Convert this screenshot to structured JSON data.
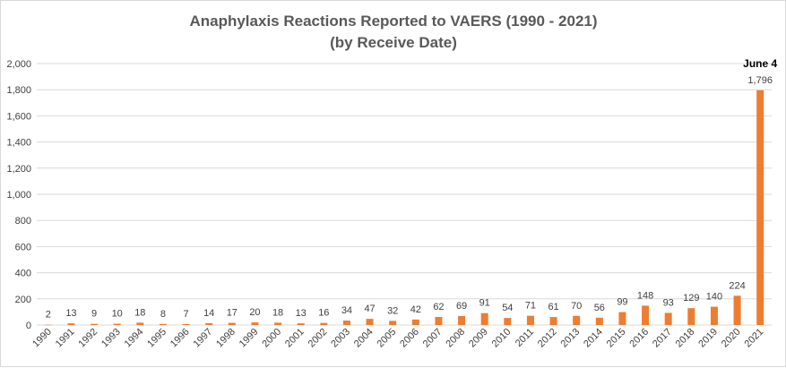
{
  "chart_data": {
    "type": "bar",
    "title": "Anaphylaxis Reactions Reported to VAERS (1990 - 2021)",
    "subtitle": "(by Receive Date)",
    "xlabel": "",
    "ylabel": "",
    "categories": [
      "1990",
      "1991",
      "1992",
      "1993",
      "1994",
      "1995",
      "1996",
      "1997",
      "1998",
      "1999",
      "2000",
      "2001",
      "2002",
      "2003",
      "2004",
      "2005",
      "2006",
      "2007",
      "2008",
      "2009",
      "2010",
      "2011",
      "2012",
      "2013",
      "2014",
      "2015",
      "2016",
      "2017",
      "2018",
      "2019",
      "2020",
      "2021"
    ],
    "values": [
      2,
      13,
      9,
      10,
      18,
      8,
      7,
      14,
      17,
      20,
      18,
      13,
      16,
      34,
      47,
      32,
      42,
      62,
      69,
      91,
      54,
      71,
      61,
      70,
      56,
      99,
      148,
      93,
      129,
      140,
      224,
      1796
    ],
    "data_labels": [
      "2",
      "13",
      "9",
      "10",
      "18",
      "8",
      "7",
      "14",
      "17",
      "20",
      "18",
      "13",
      "16",
      "34",
      "47",
      "32",
      "42",
      "62",
      "69",
      "91",
      "54",
      "71",
      "61",
      "70",
      "56",
      "99",
      "148",
      "93",
      "129",
      "140",
      "224",
      "1,796"
    ],
    "ylim": [
      0,
      2000
    ],
    "yticks": [
      0,
      200,
      400,
      600,
      800,
      1000,
      1200,
      1400,
      1600,
      1800,
      2000
    ],
    "ytick_labels": [
      "0",
      "200",
      "400",
      "600",
      "800",
      "1,000",
      "1,200",
      "1,400",
      "1,600",
      "1,800",
      "2,000"
    ],
    "grid": true,
    "bar_color": "#ed7d31",
    "grid_color": "#d9d9d9",
    "annotation": {
      "text": "June 4",
      "category": "2021"
    }
  }
}
